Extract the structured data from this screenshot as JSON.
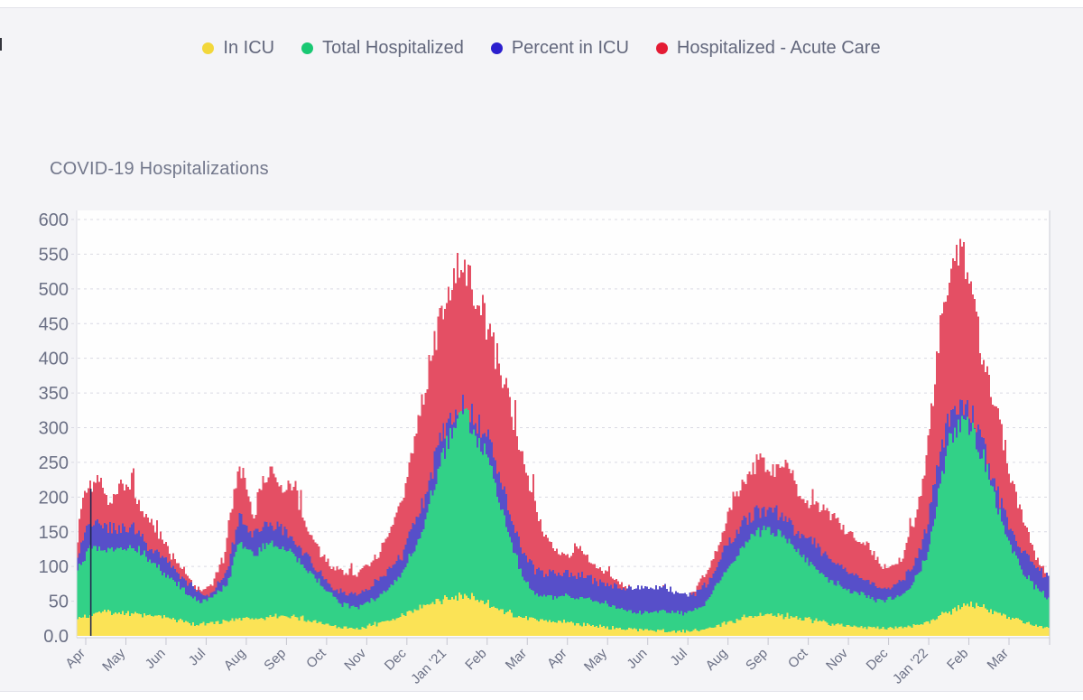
{
  "page": {
    "background_color": "#f4f4f7",
    "plot_background_color": "#fefefe",
    "grid_color": "#d9d9e3",
    "axis_color": "#c9ccd6",
    "text_color": "#6b7085",
    "legend_text_color": "#62677c",
    "title_color": "#73788c"
  },
  "chart_data": {
    "type": "bar",
    "title": "COVID-19 Hospitalizations",
    "xlabel": "",
    "ylabel": "",
    "ylim": [
      0,
      600
    ],
    "y_ticks": [
      "600",
      "550",
      "500",
      "450",
      "400",
      "350",
      "300",
      "250",
      "200",
      "150",
      "100",
      "50",
      "0.0"
    ],
    "grid": "dashed horizontal gridlines every 50",
    "legend_position": "top center",
    "x_unit": "months, Apr 2020 through Mar 2022 (daily bars)",
    "x_tick_labels": [
      "Apr",
      "May",
      "Jun",
      "Jul",
      "Aug",
      "Sep",
      "Oct",
      "Nov",
      "Dec",
      "Jan '21",
      "Feb",
      "Mar",
      "Apr",
      "May",
      "Jun",
      "Jul",
      "Aug",
      "Sep",
      "Oct",
      "Nov",
      "Dec",
      "Jan '22",
      "Feb",
      "Mar"
    ],
    "draw_order": [
      "Hospitalized - Acute Care",
      "Percent in ICU",
      "Total Hospitalized",
      "In ICU"
    ],
    "series": [
      {
        "name": "In ICU",
        "legend_color": "#f2d73b",
        "bar_color": "#fbe356",
        "jitter": 0.1,
        "spikes": false,
        "points": [
          [
            0,
            22
          ],
          [
            0.4,
            33
          ],
          [
            0.8,
            35
          ],
          [
            1.2,
            33
          ],
          [
            1.6,
            30
          ],
          [
            2,
            28
          ],
          [
            2.5,
            22
          ],
          [
            3,
            17
          ],
          [
            3.5,
            20
          ],
          [
            4,
            27
          ],
          [
            4.5,
            25
          ],
          [
            5,
            28
          ],
          [
            5.5,
            26
          ],
          [
            6,
            18
          ],
          [
            6.5,
            12
          ],
          [
            7,
            12
          ],
          [
            7.5,
            18
          ],
          [
            8,
            30
          ],
          [
            8.5,
            42
          ],
          [
            9,
            52
          ],
          [
            9.4,
            58
          ],
          [
            9.7,
            56
          ],
          [
            10,
            50
          ],
          [
            10.4,
            40
          ],
          [
            10.8,
            30
          ],
          [
            11.2,
            25
          ],
          [
            11.6,
            22
          ],
          [
            12,
            20
          ],
          [
            12.5,
            16
          ],
          [
            13,
            13
          ],
          [
            13.5,
            10
          ],
          [
            14,
            8
          ],
          [
            14.5,
            7
          ],
          [
            15,
            7
          ],
          [
            15.5,
            10
          ],
          [
            16,
            18
          ],
          [
            16.5,
            27
          ],
          [
            17,
            32
          ],
          [
            17.4,
            30
          ],
          [
            17.8,
            26
          ],
          [
            18.2,
            22
          ],
          [
            18.6,
            18
          ],
          [
            19,
            15
          ],
          [
            19.5,
            12
          ],
          [
            20,
            11
          ],
          [
            20.5,
            13
          ],
          [
            21,
            20
          ],
          [
            21.4,
            32
          ],
          [
            21.8,
            42
          ],
          [
            22.1,
            45
          ],
          [
            22.4,
            40
          ],
          [
            22.8,
            33
          ],
          [
            23.2,
            24
          ],
          [
            23.6,
            16
          ],
          [
            24,
            10
          ]
        ]
      },
      {
        "name": "Total Hospitalized",
        "legend_color": "#19c873",
        "bar_color": "#32d187",
        "jitter": 0.05,
        "spikes": false,
        "points": [
          [
            0,
            95
          ],
          [
            0.3,
            128
          ],
          [
            0.7,
            125
          ],
          [
            1,
            122
          ],
          [
            1.4,
            128
          ],
          [
            1.8,
            110
          ],
          [
            2.2,
            85
          ],
          [
            2.6,
            68
          ],
          [
            3,
            48
          ],
          [
            3.3,
            55
          ],
          [
            3.7,
            75
          ],
          [
            4,
            135
          ],
          [
            4.35,
            120
          ],
          [
            4.7,
            132
          ],
          [
            5,
            128
          ],
          [
            5.3,
            120
          ],
          [
            5.7,
            95
          ],
          [
            6.1,
            68
          ],
          [
            6.5,
            45
          ],
          [
            7,
            42
          ],
          [
            7.5,
            60
          ],
          [
            8,
            88
          ],
          [
            8.5,
            150
          ],
          [
            9,
            255
          ],
          [
            9.4,
            315
          ],
          [
            9.6,
            320
          ],
          [
            9.8,
            295
          ],
          [
            10.1,
            260
          ],
          [
            10.4,
            205
          ],
          [
            10.7,
            140
          ],
          [
            11,
            85
          ],
          [
            11.3,
            62
          ],
          [
            11.7,
            55
          ],
          [
            12.1,
            58
          ],
          [
            12.5,
            55
          ],
          [
            13,
            48
          ],
          [
            13.5,
            38
          ],
          [
            14,
            32
          ],
          [
            14.5,
            35
          ],
          [
            15,
            32
          ],
          [
            15.5,
            45
          ],
          [
            16,
            90
          ],
          [
            16.4,
            125
          ],
          [
            16.8,
            150
          ],
          [
            17.1,
            155
          ],
          [
            17.4,
            145
          ],
          [
            17.8,
            120
          ],
          [
            18.2,
            100
          ],
          [
            18.6,
            80
          ],
          [
            19,
            68
          ],
          [
            19.4,
            60
          ],
          [
            19.8,
            50
          ],
          [
            20.2,
            55
          ],
          [
            20.6,
            70
          ],
          [
            21,
            115
          ],
          [
            21.3,
            210
          ],
          [
            21.6,
            290
          ],
          [
            21.85,
            310
          ],
          [
            22.1,
            298
          ],
          [
            22.4,
            255
          ],
          [
            22.7,
            195
          ],
          [
            23,
            140
          ],
          [
            23.3,
            100
          ],
          [
            23.6,
            75
          ],
          [
            24,
            55
          ]
        ]
      },
      {
        "name": "Percent in ICU",
        "legend_color": "#2b1fce",
        "bar_color": "#574fc9",
        "jitter": 0.06,
        "spikes": false,
        "points": [
          [
            0,
            115
          ],
          [
            0.25,
            168
          ],
          [
            0.6,
            160
          ],
          [
            1,
            150
          ],
          [
            1.3,
            158
          ],
          [
            1.6,
            140
          ],
          [
            2,
            118
          ],
          [
            2.4,
            95
          ],
          [
            2.8,
            75
          ],
          [
            3.1,
            58
          ],
          [
            3.4,
            66
          ],
          [
            3.7,
            95
          ],
          [
            4,
            172
          ],
          [
            4.3,
            150
          ],
          [
            4.6,
            160
          ],
          [
            4.9,
            162
          ],
          [
            5.2,
            150
          ],
          [
            5.5,
            130
          ],
          [
            5.9,
            95
          ],
          [
            6.3,
            70
          ],
          [
            6.7,
            60
          ],
          [
            7.1,
            62
          ],
          [
            7.5,
            85
          ],
          [
            8,
            115
          ],
          [
            8.5,
            185
          ],
          [
            9,
            290
          ],
          [
            9.4,
            330
          ],
          [
            9.6,
            335
          ],
          [
            9.8,
            315
          ],
          [
            10.1,
            290
          ],
          [
            10.4,
            240
          ],
          [
            10.7,
            175
          ],
          [
            11,
            120
          ],
          [
            11.3,
            95
          ],
          [
            11.6,
            88
          ],
          [
            12,
            92
          ],
          [
            12.4,
            88
          ],
          [
            12.8,
            80
          ],
          [
            13.2,
            72
          ],
          [
            13.6,
            70
          ],
          [
            14,
            70
          ],
          [
            14.4,
            72
          ],
          [
            14.8,
            62
          ],
          [
            15.2,
            60
          ],
          [
            15.6,
            78
          ],
          [
            16,
            125
          ],
          [
            16.4,
            160
          ],
          [
            16.8,
            180
          ],
          [
            17.1,
            185
          ],
          [
            17.4,
            175
          ],
          [
            17.8,
            150
          ],
          [
            18.2,
            135
          ],
          [
            18.6,
            112
          ],
          [
            19,
            95
          ],
          [
            19.4,
            82
          ],
          [
            19.8,
            70
          ],
          [
            20.1,
            72
          ],
          [
            20.4,
            80
          ],
          [
            20.7,
            105
          ],
          [
            21,
            160
          ],
          [
            21.3,
            260
          ],
          [
            21.6,
            325
          ],
          [
            21.85,
            338
          ],
          [
            22.1,
            320
          ],
          [
            22.4,
            275
          ],
          [
            22.7,
            215
          ],
          [
            23,
            160
          ],
          [
            23.3,
            125
          ],
          [
            23.6,
            105
          ],
          [
            23.85,
            90
          ],
          [
            24,
            85
          ]
        ]
      },
      {
        "name": "Hospitalized - Acute Care",
        "legend_color": "#e41b34",
        "bar_color": "#e44f64",
        "jitter": 0.055,
        "spikes": true,
        "points": [
          [
            0,
            145
          ],
          [
            0.1,
            190
          ],
          [
            0.25,
            215
          ],
          [
            0.5,
            220
          ],
          [
            0.7,
            200
          ],
          [
            0.9,
            195
          ],
          [
            1.1,
            215
          ],
          [
            1.3,
            205
          ],
          [
            1.5,
            190
          ],
          [
            1.7,
            170
          ],
          [
            2,
            150
          ],
          [
            2.3,
            118
          ],
          [
            2.6,
            95
          ],
          [
            2.9,
            70
          ],
          [
            3.1,
            64
          ],
          [
            3.3,
            72
          ],
          [
            3.6,
            110
          ],
          [
            3.85,
            200
          ],
          [
            4,
            250
          ],
          [
            4.2,
            215
          ],
          [
            4.35,
            172
          ],
          [
            4.55,
            222
          ],
          [
            4.8,
            235
          ],
          [
            5.1,
            205
          ],
          [
            5.35,
            222
          ],
          [
            5.6,
            160
          ],
          [
            6,
            120
          ],
          [
            6.4,
            95
          ],
          [
            6.8,
            90
          ],
          [
            7.2,
            100
          ],
          [
            7.6,
            135
          ],
          [
            8,
            190
          ],
          [
            8.4,
            300
          ],
          [
            8.8,
            420
          ],
          [
            9.1,
            480
          ],
          [
            9.35,
            520
          ],
          [
            9.55,
            535
          ],
          [
            9.75,
            510
          ],
          [
            10,
            470
          ],
          [
            10.2,
            435
          ],
          [
            10.5,
            375
          ],
          [
            10.8,
            305
          ],
          [
            11,
            265
          ],
          [
            11.2,
            205
          ],
          [
            11.5,
            150
          ],
          [
            11.8,
            125
          ],
          [
            12.1,
            115
          ],
          [
            12.3,
            130
          ],
          [
            12.6,
            110
          ],
          [
            12.9,
            95
          ],
          [
            13.2,
            85
          ],
          [
            13.5,
            72
          ],
          [
            13.8,
            62
          ],
          [
            14.1,
            58
          ],
          [
            14.4,
            62
          ],
          [
            14.7,
            56
          ],
          [
            15,
            55
          ],
          [
            15.3,
            68
          ],
          [
            15.6,
            95
          ],
          [
            15.9,
            140
          ],
          [
            16.2,
            195
          ],
          [
            16.5,
            228
          ],
          [
            16.9,
            258
          ],
          [
            17.2,
            238
          ],
          [
            17.5,
            248
          ],
          [
            17.8,
            212
          ],
          [
            18.1,
            193
          ],
          [
            18.4,
            183
          ],
          [
            18.7,
            168
          ],
          [
            19,
            152
          ],
          [
            19.3,
            140
          ],
          [
            19.6,
            128
          ],
          [
            19.9,
            96
          ],
          [
            20.1,
            105
          ],
          [
            20.35,
            112
          ],
          [
            20.6,
            150
          ],
          [
            20.85,
            210
          ],
          [
            21.1,
            320
          ],
          [
            21.35,
            450
          ],
          [
            21.6,
            530
          ],
          [
            21.8,
            552
          ],
          [
            21.95,
            540
          ],
          [
            22.1,
            505
          ],
          [
            22.3,
            425
          ],
          [
            22.5,
            372
          ],
          [
            22.8,
            300
          ],
          [
            23,
            250
          ],
          [
            23.2,
            200
          ],
          [
            23.5,
            150
          ],
          [
            23.7,
            115
          ],
          [
            23.9,
            95
          ],
          [
            24,
            72
          ]
        ]
      }
    ],
    "annotations": [
      {
        "name": "dark-spike",
        "month": 0.33,
        "value": 212,
        "color": "#232850"
      }
    ]
  }
}
